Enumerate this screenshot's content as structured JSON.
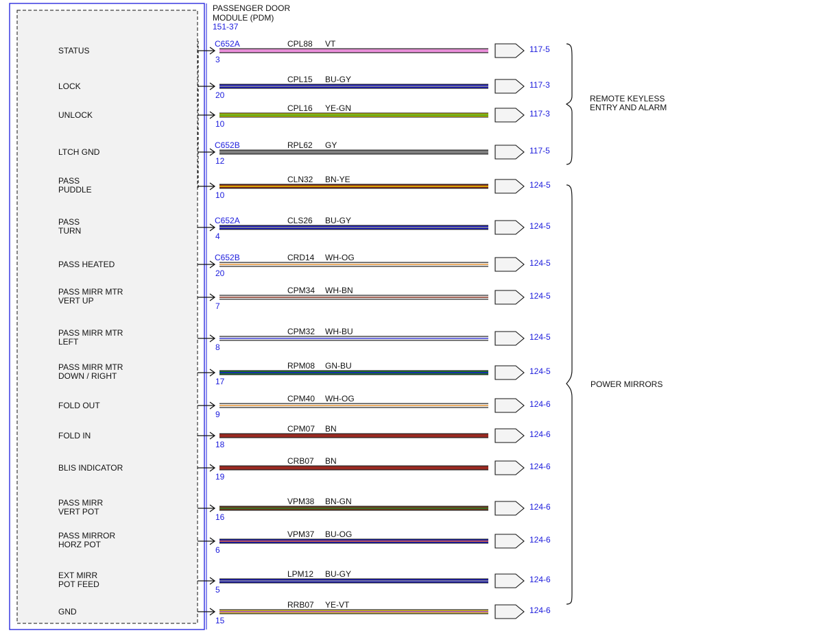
{
  "module": {
    "title_line1": "PASSENGER DOOR",
    "title_line2": "MODULE (PDM)",
    "ref": "151-37"
  },
  "groups": [
    {
      "label1": "REMOTE KEYLESS",
      "label2": "ENTRY AND ALARM"
    },
    {
      "label1": "POWER MIRRORS",
      "label2": ""
    }
  ],
  "wires": [
    {
      "func1": "STATUS",
      "func2": "",
      "connector": "C652A",
      "pin": "3",
      "circuit": "CPL88",
      "color_code": "VT",
      "dest": "117-5",
      "colors": [
        "#e88fd8"
      ]
    },
    {
      "func1": "LOCK",
      "func2": "",
      "connector": "",
      "pin": "20",
      "circuit": "CPL15",
      "color_code": "BU-GY",
      "dest": "117-3",
      "colors": [
        "#1818c8",
        "#8a8a8a"
      ]
    },
    {
      "func1": "UNLOCK",
      "func2": "",
      "connector": "",
      "pin": "10",
      "circuit": "CPL16",
      "color_code": "YE-GN",
      "dest": "117-3",
      "colors": [
        "#d8d800",
        "#2a8a2a"
      ]
    },
    {
      "func1": "LTCH GND",
      "func2": "",
      "connector": "C652B",
      "pin": "12",
      "circuit": "RPL62",
      "color_code": "GY",
      "dest": "117-5",
      "colors": [
        "#808080"
      ]
    },
    {
      "func1": "PASS",
      "func2": "PUDDLE",
      "connector": "",
      "pin": "10",
      "circuit": "CLN32",
      "color_code": "BN-YE",
      "dest": "124-5",
      "colors": [
        "#8a2a1a",
        "#e8c800"
      ]
    },
    {
      "func1": "PASS",
      "func2": "TURN",
      "connector": "C652A",
      "pin": "4",
      "circuit": "CLS26",
      "color_code": "BU-GY",
      "dest": "124-5",
      "colors": [
        "#1818c8",
        "#8a8a8a"
      ]
    },
    {
      "func1": "PASS HEATED",
      "func2": "",
      "connector": "C652B",
      "pin": "20",
      "circuit": "CRD14",
      "color_code": "WH-OG",
      "dest": "124-5",
      "colors": [
        "#f4f4f4",
        "#e89a40"
      ]
    },
    {
      "func1": "PASS MIRR MTR",
      "func2": "VERT UP",
      "connector": "",
      "pin": "7",
      "circuit": "CPM34",
      "color_code": "WH-BN",
      "dest": "124-5",
      "colors": [
        "#f4f4f4",
        "#8a3a2a"
      ]
    },
    {
      "func1": "PASS MIRR MTR",
      "func2": "LEFT",
      "connector": "",
      "pin": "8",
      "circuit": "CPM32",
      "color_code": "WH-BU",
      "dest": "124-5",
      "colors": [
        "#f4f4f4",
        "#4a4ad8"
      ]
    },
    {
      "func1": "PASS MIRR MTR",
      "func2": "DOWN / RIGHT",
      "connector": "",
      "pin": "17",
      "circuit": "RPM08",
      "color_code": "GN-BU",
      "dest": "124-5",
      "colors": [
        "#1a7a2a",
        "#1818c8"
      ]
    },
    {
      "func1": "FOLD OUT",
      "func2": "",
      "connector": "",
      "pin": "9",
      "circuit": "CPM40",
      "color_code": "WH-OG",
      "dest": "124-6",
      "colors": [
        "#f4f4f4",
        "#e89a40"
      ]
    },
    {
      "func1": "FOLD IN",
      "func2": "",
      "connector": "",
      "pin": "18",
      "circuit": "CPM07",
      "color_code": "BN",
      "dest": "124-6",
      "colors": [
        "#9a2a22"
      ]
    },
    {
      "func1": "BLIS INDICATOR",
      "func2": "",
      "connector": "",
      "pin": "19",
      "circuit": "CRB07",
      "color_code": "BN",
      "dest": "124-6",
      "colors": [
        "#9a2a22"
      ]
    },
    {
      "func1": "PASS MIRR",
      "func2": "VERT POT",
      "connector": "",
      "pin": "16",
      "circuit": "VPM38",
      "color_code": "BN-GN",
      "dest": "124-6",
      "colors": [
        "#7a3a1a",
        "#2a7a2a"
      ]
    },
    {
      "func1": "PASS MIRROR",
      "func2": "HORZ POT",
      "connector": "",
      "pin": "6",
      "circuit": "VPM37",
      "color_code": "BU-OG",
      "dest": "124-6",
      "colors": [
        "#1818c8",
        "#e86a30"
      ]
    },
    {
      "func1": "EXT MIRR",
      "func2": "POT FEED",
      "connector": "",
      "pin": "5",
      "circuit": "LPM12",
      "color_code": "BU-GY",
      "dest": "124-6",
      "colors": [
        "#1818c8",
        "#8a8a8a"
      ]
    },
    {
      "func1": "GND",
      "func2": "",
      "connector": "",
      "pin": "15",
      "circuit": "RRB07",
      "color_code": "YE-VT",
      "dest": "124-6",
      "colors": [
        "#e8d030",
        "#9a40c8"
      ]
    }
  ]
}
